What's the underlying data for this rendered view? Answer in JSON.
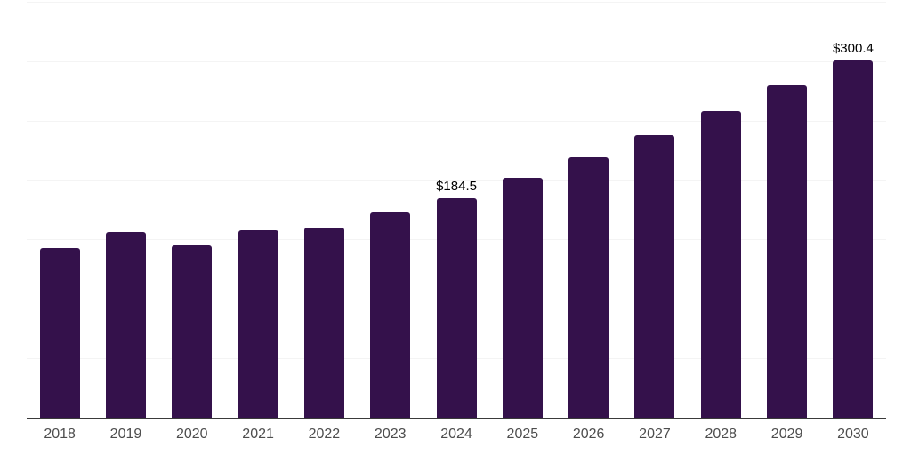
{
  "chart_data": {
    "type": "bar",
    "title": "",
    "xlabel": "",
    "ylabel": "",
    "categories": [
      "2018",
      "2019",
      "2020",
      "2021",
      "2022",
      "2023",
      "2024",
      "2025",
      "2026",
      "2027",
      "2028",
      "2029",
      "2030"
    ],
    "values": [
      143.0,
      156.5,
      145.3,
      157.8,
      160.0,
      172.5,
      184.5,
      201.7,
      219.4,
      237.6,
      257.8,
      279.4,
      300.4
    ],
    "value_prefix": "$",
    "data_labels": {
      "2024": "$184.5",
      "2030": "$300.4"
    },
    "ylim": [
      0,
      350
    ],
    "gridline_interval": 50,
    "grid": true,
    "legend_position": "none",
    "colors": {
      "bar": "#34114B",
      "gridline": "#F4F4F4",
      "axis_line": "#3A3A3A",
      "tick_label": "#4D4D4D",
      "data_label": "#000000",
      "background": "#FFFFFF"
    }
  }
}
